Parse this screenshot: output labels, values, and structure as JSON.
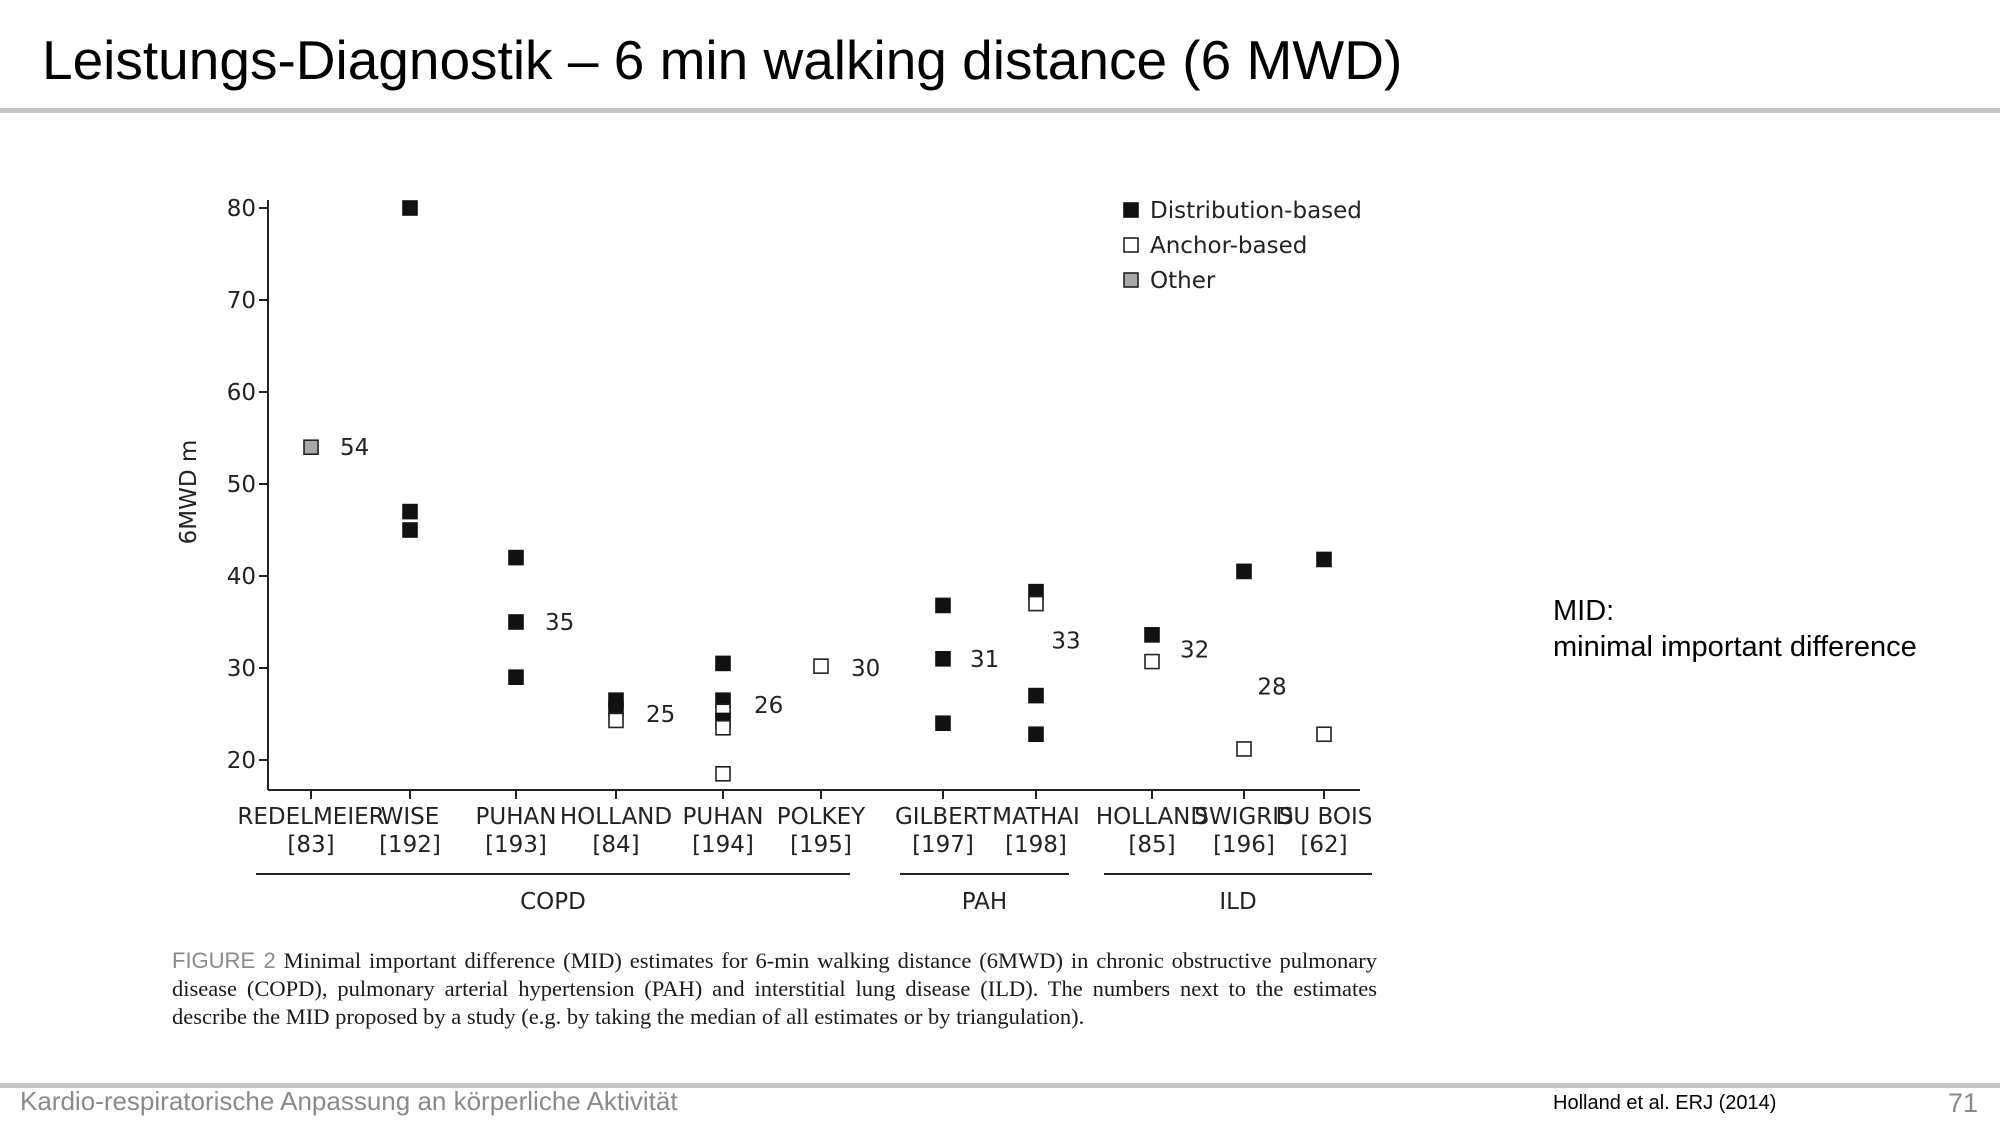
{
  "slide": {
    "title": "Leistungs-Diagnostik –  6 min walking distance (6 MWD)",
    "side_note_line1": "MID:",
    "side_note_line2": "minimal important difference",
    "footer_left": "Kardio-respiratorische Anpassung an körperliche Aktivität",
    "footer_reference": "Holland et al. ERJ (2014)",
    "page_number": "71"
  },
  "caption": {
    "label": "FIGURE 2",
    "text": "Minimal important difference (MID) estimates for 6-min walking distance (6MWD) in chronic obstructive pulmonary disease (COPD), pulmonary arterial hypertension (PAH) and interstitial lung disease (ILD). The numbers next to the estimates describe the MID proposed by a study (e.g. by taking the median of all estimates or by triangulation)."
  },
  "chart_data": {
    "type": "scatter",
    "ylabel": "6MWD m",
    "ylim": [
      18,
      81
    ],
    "yticks": [
      20,
      30,
      40,
      50,
      60,
      70,
      80
    ],
    "legend_position": "top-right",
    "legend": [
      {
        "type": "distribution",
        "label": "Distribution-based"
      },
      {
        "type": "anchor",
        "label": "Anchor-based"
      },
      {
        "type": "other",
        "label": "Other"
      }
    ],
    "colors": {
      "distribution": "#111111",
      "anchor": "#ffffff",
      "other": "#a8a8a8",
      "stroke": "#222222"
    },
    "studies": [
      {
        "name": "REDELMEIER",
        "ref": "[83]",
        "group": "COPD",
        "proposed": "54",
        "points": [
          {
            "type": "other",
            "y": 54
          }
        ]
      },
      {
        "name": "WISE",
        "ref": "[192]",
        "group": "COPD",
        "proposed": "",
        "points": [
          {
            "type": "distribution",
            "y": 80
          },
          {
            "type": "distribution",
            "y": 47
          },
          {
            "type": "distribution",
            "y": 45
          }
        ]
      },
      {
        "name": "PUHAN",
        "ref": "[193]",
        "group": "COPD",
        "proposed": "35",
        "points": [
          {
            "type": "distribution",
            "y": 42
          },
          {
            "type": "distribution",
            "y": 35
          },
          {
            "type": "distribution",
            "y": 29
          }
        ]
      },
      {
        "name": "HOLLAND",
        "ref": "[84]",
        "group": "COPD",
        "proposed": "25",
        "points": [
          {
            "type": "distribution",
            "y": 26.5
          },
          {
            "type": "distribution",
            "y": 25.5
          },
          {
            "type": "anchor",
            "y": 24.3
          }
        ]
      },
      {
        "name": "PUHAN",
        "ref": "[194]",
        "group": "COPD",
        "proposed": "26",
        "points": [
          {
            "type": "distribution",
            "y": 30.5
          },
          {
            "type": "distribution",
            "y": 26.5
          },
          {
            "type": "anchor",
            "y": 25.3
          },
          {
            "type": "distribution",
            "y": 24.3
          },
          {
            "type": "anchor",
            "y": 23.5
          },
          {
            "type": "anchor",
            "y": 18.5
          }
        ]
      },
      {
        "name": "POLKEY",
        "ref": "[195]",
        "group": "COPD",
        "proposed": "30",
        "points": [
          {
            "type": "anchor",
            "y": 30.2
          }
        ]
      },
      {
        "name": "GILBERT",
        "ref": "[197]",
        "group": "PAH",
        "proposed": "31",
        "points": [
          {
            "type": "distribution",
            "y": 36.8
          },
          {
            "type": "distribution",
            "y": 31
          },
          {
            "type": "distribution",
            "y": 24
          }
        ]
      },
      {
        "name": "MATHAI",
        "ref": "[198]",
        "group": "PAH",
        "proposed": "33",
        "points": [
          {
            "type": "distribution",
            "y": 38.3
          },
          {
            "type": "anchor",
            "y": 37
          },
          {
            "type": "distribution",
            "y": 27
          },
          {
            "type": "distribution",
            "y": 22.8
          }
        ]
      },
      {
        "name": "HOLLAND",
        "ref": "[85]",
        "group": "ILD",
        "proposed": "32",
        "points": [
          {
            "type": "distribution",
            "y": 33.6
          },
          {
            "type": "anchor",
            "y": 30.7
          }
        ]
      },
      {
        "name": "SWIGRIS",
        "ref": "[196]",
        "group": "ILD",
        "proposed": "28",
        "points": [
          {
            "type": "distribution",
            "y": 40.5
          },
          {
            "type": "anchor",
            "y": 21.2
          }
        ]
      },
      {
        "name": "DU BOIS",
        "ref": "[62]",
        "group": "ILD",
        "proposed": "",
        "points": [
          {
            "type": "distribution",
            "y": 41.8
          },
          {
            "type": "anchor",
            "y": 22.8
          }
        ]
      }
    ],
    "groups": [
      {
        "name": "COPD"
      },
      {
        "name": "PAH"
      },
      {
        "name": "ILD"
      }
    ]
  }
}
